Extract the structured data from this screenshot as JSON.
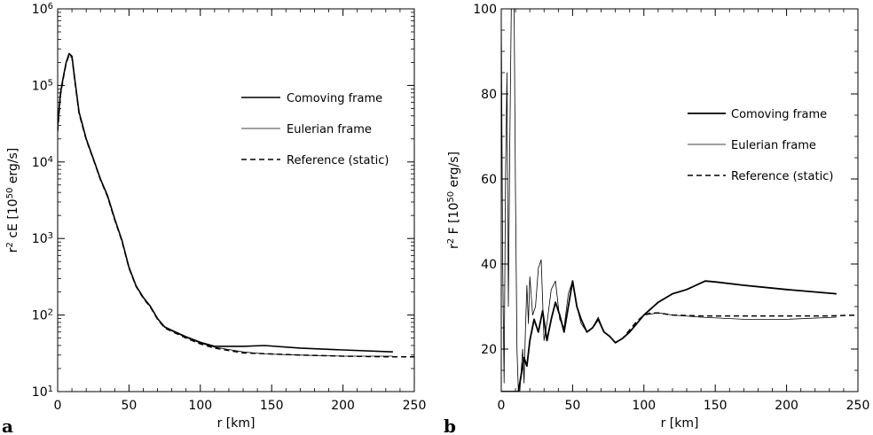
{
  "chart_data": [
    {
      "type": "line",
      "panel_label": "a",
      "xlabel": "r [km]",
      "ylabel": "r² cE [10⁵⁰ erg/s]",
      "ylabel_parts": {
        "pre": "r",
        "exp1": "2",
        "mid": " cE [10",
        "exp2": "50",
        "post": " erg/s]"
      },
      "xlim": [
        0,
        250
      ],
      "ylim": [
        10,
        1000000
      ],
      "yscale": "log",
      "grid": false,
      "legend_position": "top-right",
      "x_ticks": [
        0,
        50,
        100,
        150,
        200,
        250
      ],
      "x_tick_labels": [
        "0",
        "50",
        "100",
        "150",
        "200",
        "250"
      ],
      "y_ticks": [
        10,
        100,
        1000,
        10000,
        100000,
        1000000
      ],
      "y_tick_labels": [
        {
          "base": "10",
          "exp": "1"
        },
        {
          "base": "10",
          "exp": "2"
        },
        {
          "base": "10",
          "exp": "3"
        },
        {
          "base": "10",
          "exp": "4"
        },
        {
          "base": "10",
          "exp": "5"
        },
        {
          "base": "10",
          "exp": "6"
        }
      ],
      "series": [
        {
          "name": "Comoving frame",
          "style": "solid",
          "width": 1.6,
          "x": [
            0,
            2,
            4,
            6,
            8,
            10,
            12,
            15,
            20,
            25,
            30,
            35,
            40,
            45,
            50,
            55,
            60,
            65,
            70,
            75,
            80,
            90,
            100,
            110,
            130,
            145,
            170,
            200,
            235
          ],
          "y": [
            30000,
            80000,
            130000,
            200000,
            260000,
            240000,
            120000,
            45000,
            20000,
            11000,
            6000,
            3600,
            1800,
            950,
            420,
            240,
            170,
            130,
            90,
            70,
            63,
            52,
            44,
            39,
            39,
            40,
            37,
            35,
            33
          ]
        },
        {
          "name": "Eulerian frame",
          "style": "solid",
          "width": 0.8,
          "x": [
            0,
            2,
            4,
            6,
            8,
            10,
            12,
            15,
            20,
            25,
            30,
            35,
            40,
            45,
            50,
            55,
            60,
            65,
            70,
            75,
            80,
            90,
            100,
            110,
            130,
            145,
            170,
            200,
            235
          ],
          "y": [
            28000,
            78000,
            128000,
            198000,
            255000,
            236000,
            118000,
            44000,
            19800,
            10900,
            5900,
            3550,
            1780,
            940,
            415,
            238,
            168,
            128,
            89,
            69,
            62,
            51,
            43,
            38,
            33,
            31,
            30,
            29,
            29
          ]
        },
        {
          "name": "Reference (static)",
          "style": "dashed",
          "width": 1.5,
          "x": [
            0,
            2,
            4,
            6,
            8,
            10,
            12,
            15,
            20,
            25,
            30,
            35,
            40,
            45,
            50,
            55,
            60,
            65,
            70,
            75,
            80,
            90,
            100,
            110,
            130,
            150,
            170,
            200,
            230,
            250
          ],
          "y": [
            25000,
            75000,
            125000,
            195000,
            250000,
            232000,
            116000,
            43000,
            19500,
            10800,
            5850,
            3500,
            1750,
            930,
            410,
            236,
            166,
            127,
            88,
            68,
            61,
            50,
            42,
            37,
            32,
            31,
            30,
            29,
            28.5,
            28.5
          ]
        }
      ]
    },
    {
      "type": "line",
      "panel_label": "b",
      "xlabel": "r [km]",
      "ylabel": "r² F [10⁵⁰ erg/s]",
      "ylabel_parts": {
        "pre": "r",
        "exp1": "2",
        "mid": " F [10",
        "exp2": "50",
        "post": " erg/s]"
      },
      "xlim": [
        0,
        250
      ],
      "ylim": [
        10,
        100
      ],
      "yscale": "linear",
      "grid": false,
      "legend_position": "top-right",
      "x_ticks": [
        0,
        50,
        100,
        150,
        200,
        250
      ],
      "x_tick_labels": [
        "0",
        "50",
        "100",
        "150",
        "200",
        "250"
      ],
      "y_ticks": [
        20,
        40,
        60,
        80,
        100
      ],
      "y_tick_labels": [
        "20",
        "40",
        "60",
        "80",
        "100"
      ],
      "series": [
        {
          "name": "Comoving frame",
          "style": "solid",
          "width": 1.8,
          "x": [
            0,
            2,
            4,
            6,
            8,
            10,
            12,
            14,
            16,
            18,
            20,
            23,
            26,
            29,
            32,
            35,
            38,
            41,
            44,
            47,
            50,
            53,
            56,
            60,
            64,
            68,
            72,
            76,
            80,
            85,
            90,
            95,
            100,
            110,
            120,
            130,
            143,
            150,
            170,
            200,
            235
          ],
          "y": [
            10,
            10,
            10,
            10,
            10,
            10,
            10,
            14,
            18,
            16,
            22,
            27,
            24,
            29,
            22,
            27,
            31,
            28,
            24,
            30,
            36,
            30,
            27,
            24,
            25,
            27,
            24,
            23,
            21.5,
            22.5,
            24,
            26,
            28,
            31,
            33,
            34,
            36,
            35.8,
            35,
            34,
            33
          ]
        },
        {
          "name": "Eulerian frame",
          "style": "solid",
          "width": 0.8,
          "x": [
            0,
            1,
            2,
            3,
            4,
            5,
            6,
            7,
            8,
            9,
            10,
            11,
            12,
            13,
            14,
            15,
            16,
            17,
            18,
            19,
            20,
            22,
            24,
            26,
            28,
            30,
            32,
            35,
            38,
            41,
            44,
            47,
            50,
            53,
            56,
            60,
            64,
            68,
            72,
            76,
            80,
            85,
            90,
            95,
            100,
            110,
            120,
            140,
            170,
            200,
            235
          ],
          "y": [
            100,
            40,
            12,
            60,
            85,
            30,
            68,
            100,
            100,
            100,
            55,
            20,
            10,
            10,
            15,
            20,
            12,
            25,
            35,
            26,
            37,
            28,
            30,
            39,
            41,
            22,
            26,
            34,
            36,
            27,
            25,
            33,
            36,
            30,
            26,
            24,
            25,
            27.5,
            24,
            23,
            21.5,
            22.5,
            24,
            26,
            28,
            28.5,
            28,
            27.5,
            27,
            27,
            27.5
          ]
        },
        {
          "name": "Reference (static)",
          "style": "dashed",
          "width": 1.5,
          "x": [
            60,
            64,
            68,
            72,
            76,
            80,
            85,
            90,
            95,
            100,
            105,
            110,
            120,
            140,
            170,
            200,
            230,
            250
          ],
          "y": [
            24,
            25,
            27,
            24,
            23,
            21.5,
            22.5,
            24.5,
            26.5,
            28,
            28.5,
            28.5,
            28,
            27.8,
            27.8,
            27.8,
            27.8,
            28
          ]
        }
      ]
    }
  ]
}
